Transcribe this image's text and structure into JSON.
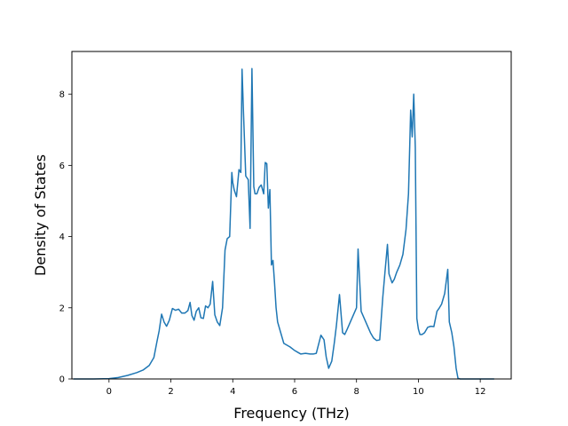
{
  "chart_data": {
    "type": "line",
    "title": "",
    "xlabel": "Frequency (THz)",
    "ylabel": "Density of States",
    "xlim": [
      -1.2,
      13.0
    ],
    "ylim": [
      0,
      9.2
    ],
    "xticks": [
      0,
      2,
      4,
      6,
      8,
      10,
      12
    ],
    "yticks": [
      0,
      2,
      4,
      6,
      8
    ],
    "grid": false,
    "legend": "none",
    "color": "#1f77b4",
    "series": [
      {
        "x": [
          -1.15,
          -0.5,
          0.0,
          0.3,
          0.6,
          0.9,
          1.1,
          1.3,
          1.45,
          1.55,
          1.62,
          1.7,
          1.78,
          1.86,
          1.95,
          2.05,
          2.15,
          2.25,
          2.35,
          2.45,
          2.55,
          2.62,
          2.68,
          2.75,
          2.82,
          2.9,
          2.97,
          3.05,
          3.12,
          3.2,
          3.27,
          3.35,
          3.42,
          3.5,
          3.58,
          3.67,
          3.75,
          3.82,
          3.9,
          3.97,
          4.0,
          4.05,
          4.12,
          4.2,
          4.26,
          4.3,
          4.35,
          4.42,
          4.5,
          4.56,
          4.62,
          4.68,
          4.72,
          4.78,
          4.85,
          4.92,
          5.0,
          5.05,
          5.1,
          5.15,
          5.2,
          5.25,
          5.3,
          5.35,
          5.4,
          5.45,
          5.55,
          5.65,
          5.75,
          5.85,
          6.0,
          6.1,
          6.2,
          6.35,
          6.5,
          6.6,
          6.7,
          6.85,
          6.95,
          7.02,
          7.1,
          7.2,
          7.28,
          7.35,
          7.45,
          7.55,
          7.62,
          7.7,
          7.8,
          7.9,
          8.0,
          8.05,
          8.1,
          8.15,
          8.25,
          8.35,
          8.45,
          8.55,
          8.65,
          8.75,
          8.85,
          8.92,
          9.0,
          9.05,
          9.15,
          9.22,
          9.3,
          9.4,
          9.5,
          9.6,
          9.68,
          9.75,
          9.8,
          9.85,
          9.9,
          9.95,
          10.0,
          10.05,
          10.12,
          10.2,
          10.3,
          10.4,
          10.5,
          10.6,
          10.68,
          10.75,
          10.85,
          10.95,
          11.0,
          11.08,
          11.15,
          11.22,
          11.28,
          11.35,
          11.5,
          12.0,
          12.45
        ],
        "y": [
          0,
          0,
          0.01,
          0.04,
          0.1,
          0.18,
          0.25,
          0.38,
          0.6,
          1.05,
          1.35,
          1.82,
          1.6,
          1.48,
          1.65,
          1.98,
          1.93,
          1.96,
          1.85,
          1.85,
          1.92,
          2.15,
          1.78,
          1.65,
          1.9,
          2.0,
          1.72,
          1.7,
          2.05,
          2.0,
          2.1,
          2.74,
          1.8,
          1.6,
          1.5,
          2.0,
          3.62,
          3.94,
          4.0,
          5.8,
          5.52,
          5.3,
          5.12,
          5.88,
          5.8,
          8.7,
          7.4,
          5.7,
          5.6,
          4.23,
          8.72,
          5.4,
          5.2,
          5.2,
          5.38,
          5.45,
          5.2,
          6.08,
          6.05,
          4.8,
          5.32,
          3.2,
          3.33,
          2.7,
          2.0,
          1.6,
          1.3,
          1.0,
          0.95,
          0.9,
          0.8,
          0.75,
          0.7,
          0.72,
          0.7,
          0.7,
          0.72,
          1.23,
          1.1,
          0.62,
          0.3,
          0.5,
          1.0,
          1.5,
          2.37,
          1.3,
          1.25,
          1.4,
          1.6,
          1.8,
          2.0,
          3.65,
          2.8,
          1.9,
          1.7,
          1.5,
          1.3,
          1.15,
          1.08,
          1.1,
          2.3,
          3.0,
          3.78,
          2.95,
          2.7,
          2.8,
          3.0,
          3.2,
          3.5,
          4.2,
          5.2,
          7.55,
          6.8,
          8.0,
          6.5,
          1.7,
          1.4,
          1.25,
          1.25,
          1.3,
          1.45,
          1.48,
          1.47,
          1.9,
          2.0,
          2.1,
          2.4,
          3.08,
          1.6,
          1.3,
          0.9,
          0.3,
          0.02,
          0,
          0,
          0,
          0
        ]
      }
    ]
  }
}
